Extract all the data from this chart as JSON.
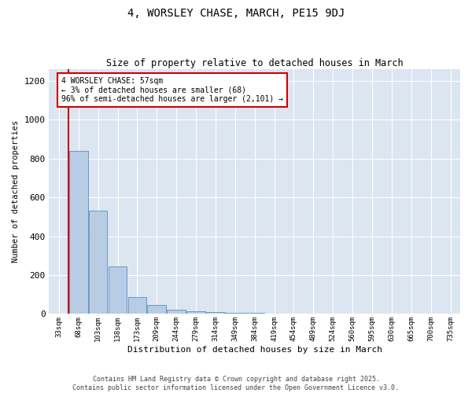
{
  "title1": "4, WORSLEY CHASE, MARCH, PE15 9DJ",
  "title2": "Size of property relative to detached houses in March",
  "xlabel": "Distribution of detached houses by size in March",
  "ylabel": "Number of detached properties",
  "categories": [
    "33sqm",
    "68sqm",
    "103sqm",
    "138sqm",
    "173sqm",
    "209sqm",
    "244sqm",
    "279sqm",
    "314sqm",
    "349sqm",
    "384sqm",
    "419sqm",
    "454sqm",
    "489sqm",
    "524sqm",
    "560sqm",
    "595sqm",
    "630sqm",
    "665sqm",
    "700sqm",
    "735sqm"
  ],
  "values": [
    0,
    840,
    530,
    245,
    85,
    47,
    20,
    14,
    8,
    6,
    4,
    3,
    2,
    1,
    1,
    0,
    0,
    0,
    0,
    0,
    0
  ],
  "bar_color": "#b8cce4",
  "bar_edge_color": "#5a8fc0",
  "highlight_color": "#cc0000",
  "ylim": [
    0,
    1260
  ],
  "yticks": [
    0,
    200,
    400,
    600,
    800,
    1000,
    1200
  ],
  "annotation_text": "4 WORSLEY CHASE: 57sqm\n← 3% of detached houses are smaller (68)\n96% of semi-detached houses are larger (2,101) →",
  "bg_color": "#dce6f0",
  "footer_line1": "Contains HM Land Registry data © Crown copyright and database right 2025.",
  "footer_line2": "Contains public sector information licensed under the Open Government Licence v3.0."
}
